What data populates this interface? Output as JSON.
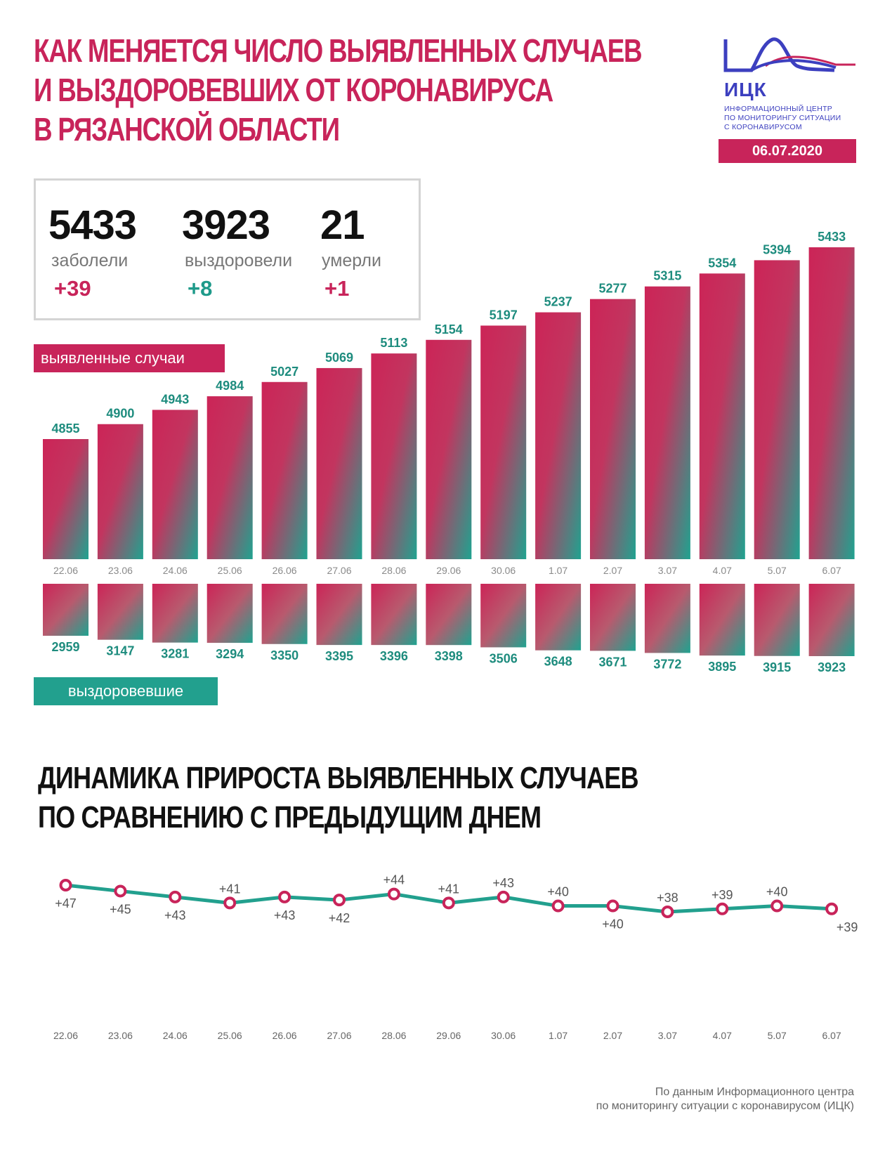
{
  "header": {
    "title_lines": [
      "КАК МЕНЯЕТСЯ ЧИСЛО ВЫЯВЛЕННЫХ СЛУЧАЕВ",
      "И ВЫЗДОРОВЕВШИХ ОТ КОРОНАВИРУСА",
      "В РЯЗАНСКОЙ ОБЛАСТИ"
    ],
    "logo_abbr": "ИЦК",
    "logo_lines": [
      "ИНФОРМАЦИОННЫЙ ЦЕНТР",
      "ПО МОНИТОРИНГУ СИТУАЦИИ",
      "С КОРОНАВИРУСОМ"
    ],
    "date": "06.07.2020"
  },
  "colors": {
    "accent": "#c8245a",
    "green": "#22a08e",
    "green_text": "#1e8c7e",
    "logo_blue": "#3c3fbf"
  },
  "stats": [
    {
      "value": "5433",
      "label": "заболели",
      "delta": "+39"
    },
    {
      "value": "3923",
      "label": "выздоровели",
      "delta": "+8"
    },
    {
      "value": "21",
      "label": "умерли",
      "delta": "+1"
    }
  ],
  "tags": {
    "cases": "выявленные случаи",
    "recovered": "выздоровевшие"
  },
  "lower_title_lines": [
    "ДИНАМИКА ПРИРОСТА ВЫЯВЛЕННЫХ СЛУЧАЕВ",
    "ПО СРАВНЕНИЮ С ПРЕДЫДУЩИМ ДНЕМ"
  ],
  "source_lines": [
    "По данным Информационного центра",
    "по мониторингу ситуации с коронавирусом (ИЦК)"
  ],
  "chart_data": [
    {
      "type": "bar",
      "categories": [
        "22.06",
        "23.06",
        "24.06",
        "25.06",
        "26.06",
        "27.06",
        "28.06",
        "29.06",
        "30.06",
        "1.07",
        "2.07",
        "3.07",
        "4.07",
        "5.07",
        "6.07"
      ],
      "series": [
        {
          "name": "выявленные случаи",
          "values": [
            4855,
            4900,
            4943,
            4984,
            5027,
            5069,
            5113,
            5154,
            5197,
            5237,
            5277,
            5315,
            5354,
            5394,
            5433
          ]
        }
      ]
    },
    {
      "type": "bar",
      "categories": [
        "22.06",
        "23.06",
        "24.06",
        "25.06",
        "26.06",
        "27.06",
        "28.06",
        "29.06",
        "30.06",
        "1.07",
        "2.07",
        "3.07",
        "4.07",
        "5.07",
        "6.07"
      ],
      "series": [
        {
          "name": "выздоровевшие",
          "values": [
            2959,
            3147,
            3281,
            3294,
            3350,
            3395,
            3396,
            3398,
            3506,
            3648,
            3671,
            3772,
            3895,
            3915,
            3923
          ]
        }
      ]
    },
    {
      "type": "line",
      "title": "ДИНАМИКА ПРИРОСТА ВЫЯВЛЕННЫХ СЛУЧАЕВ ПО СРАВНЕНИЮ С ПРЕДЫДУЩИМ ДНЕМ",
      "x": [
        "22.06",
        "23.06",
        "24.06",
        "25.06",
        "26.06",
        "27.06",
        "28.06",
        "29.06",
        "30.06",
        "1.07",
        "2.07",
        "3.07",
        "4.07",
        "5.07",
        "6.07"
      ],
      "values": [
        47,
        45,
        43,
        41,
        43,
        42,
        44,
        41,
        43,
        40,
        40,
        38,
        39,
        40,
        39
      ],
      "labels": [
        "+47",
        "+45",
        "+43",
        "+41",
        "+43",
        "+42",
        "+44",
        "+41",
        "+43",
        "+40",
        "+40",
        "+38",
        "+39",
        "+40",
        "+39"
      ]
    }
  ]
}
